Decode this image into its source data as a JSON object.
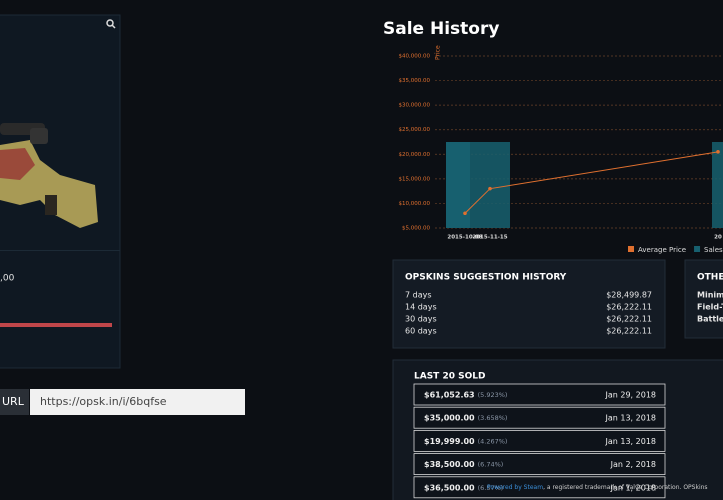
{
  "item_card": {
    "price_fragment": ",00"
  },
  "share": {
    "label": "URL",
    "url": "https://opsk.in/i/6bqfse"
  },
  "chart_data": {
    "type": "combo",
    "title": "Sale History",
    "y_label": "Price",
    "categories": [
      "2015-10-08",
      "2015-11-15",
      "20"
    ],
    "series": [
      {
        "name": "Average Price",
        "type": "line",
        "color": "#e0702f",
        "values": [
          8000,
          13000,
          20500
        ]
      },
      {
        "name": "Sales",
        "type": "bar",
        "axis": "y2",
        "color": "#17606f",
        "values": [
          1,
          1,
          1
        ]
      }
    ],
    "ylim": [
      5000,
      40000
    ],
    "yticks": [
      {
        "value": 5000,
        "label": "$5,000.00"
      },
      {
        "value": 10000,
        "label": "$10,000.00"
      },
      {
        "value": 15000,
        "label": "$15,000.00"
      },
      {
        "value": 20000,
        "label": "$20,000.00"
      },
      {
        "value": 25000,
        "label": "$25,000.00"
      },
      {
        "value": 30000,
        "label": "$30,000.00"
      },
      {
        "value": 35000,
        "label": "$35,000.00"
      },
      {
        "value": 40000,
        "label": "$40,000.00"
      }
    ],
    "y2lim": [
      0,
      2
    ],
    "grid": true,
    "legend": "bottom-right"
  },
  "suggestion_history": {
    "title": "OPSKINS SUGGESTION HISTORY",
    "rows": [
      [
        "7 days",
        "$28,499.87"
      ],
      [
        "14 days",
        "$26,222.11"
      ],
      [
        "30 days",
        "$26,222.11"
      ],
      [
        "60 days",
        "$26,222.11"
      ]
    ]
  },
  "other_wears": {
    "title": "OTHER",
    "rows": [
      "Minima",
      "Field-T",
      "Battle-S"
    ]
  },
  "last_sold": {
    "title": "LAST 20 SOLD",
    "rows": [
      {
        "price": "$61,052.63",
        "pct": "(5.923%)",
        "date": "Jan 29, 2018"
      },
      {
        "price": "$35,000.00",
        "pct": "(3.658%)",
        "date": "Jan 13, 2018"
      },
      {
        "price": "$19,999.00",
        "pct": "(4.267%)",
        "date": "Jan 13, 2018"
      },
      {
        "price": "$38,500.00",
        "pct": "(6.74%)",
        "date": "Jan 2, 2018"
      },
      {
        "price": "$36,500.00",
        "pct": "(6.57%)",
        "date": "Jan 1, 2018"
      }
    ]
  },
  "footer": {
    "link": "Powered by Steam",
    "text": ", a registered trademark of Valve Corporation. OPSkins"
  }
}
